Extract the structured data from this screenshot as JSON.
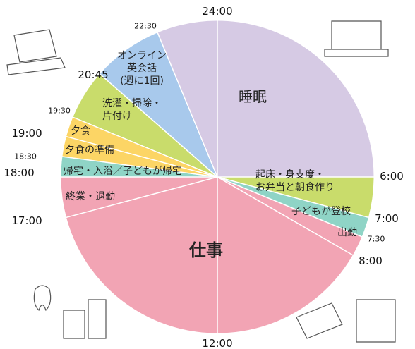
{
  "chart_data": {
    "type": "pie",
    "categories": [
      "起床・身支度・\nお弁当と朝食作り",
      "子どもが登校",
      "出勤",
      "仕事",
      "終業・退勤",
      "帰宅・入浴／子どもが帰宅",
      "夕食の準備",
      "夕食",
      "洗濯・掃除・\n片付け",
      "オンライン\n英会話\n(週に1回)",
      "睡眠"
    ],
    "values": [
      1,
      0.5,
      0.5,
      9,
      1,
      0.5,
      0.5,
      0.5,
      1.25,
      1.75,
      7.5
    ],
    "colors": [
      "#c9dc6b",
      "#8fd4c6",
      "#f2a4b4",
      "#f2a4b4",
      "#f2a4b4",
      "#8fd4c6",
      "#fcd565",
      "#fcd565",
      "#c9dc6b",
      "#a8c9ec",
      "#d6cae4"
    ],
    "ticks": [
      {
        "value": 6,
        "label": "6:00"
      },
      {
        "value": 7,
        "label": "7:00"
      },
      {
        "value": 7.5,
        "label": "7:30"
      },
      {
        "value": 8,
        "label": "8:00"
      },
      {
        "value": 12,
        "label": "12:00"
      },
      {
        "value": 17,
        "label": "17:00"
      },
      {
        "value": 18,
        "label": "18:00"
      },
      {
        "value": 18.5,
        "label": "18:30"
      },
      {
        "value": 19,
        "label": "19:00"
      },
      {
        "value": 19.5,
        "label": "19:30"
      },
      {
        "value": 20.75,
        "label": "20:45"
      },
      {
        "value": 22.5,
        "label": "22:30"
      },
      {
        "value": 24,
        "label": "24:00"
      }
    ]
  }
}
